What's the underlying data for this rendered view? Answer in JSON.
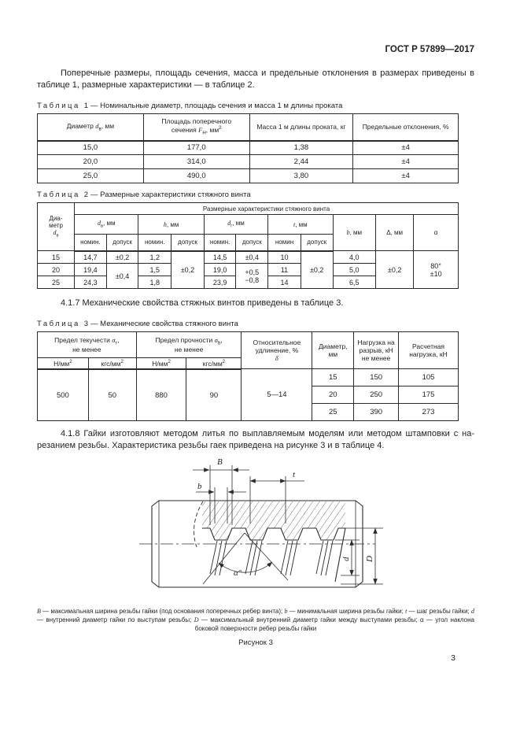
{
  "page": {
    "header": "ГОСТ Р 57899—2017",
    "number": "3"
  },
  "text": {
    "intro": "Поперечные размеры, площадь сечения, масса и предельные отклонения в размерах приведены в таблице 1, размерные характеристики — в таблице 2.",
    "p417": "4.1.7 Механические свойства стяжных винтов приведены в таблице 3.",
    "p418": "4.1.8 Гайки изготовляют методом литья по выплавляемым моделям или методом штамповки с на­резанием резьбы. Характеристика резьбы гаек приведена на рисунке 3 и в таблице 4."
  },
  "tables": {
    "t1": {
      "caption": {
        "word": "Таблица",
        "num": "1",
        "text": "— Номинальные диаметр, площадь сечения и масса 1 м длины проката"
      },
      "widths": [
        25.2,
        25.2,
        24.6,
        25.0
      ],
      "head": [
        [
          {
            "t": "Диаметр *d*~в~, мм"
          },
          {
            "t": "Площадь поперечного\nсечения *F*~Н~, мм^2^"
          },
          {
            "t": "Масса 1 м длины проката, кг"
          },
          {
            "t": "Предельные отклонения, %"
          }
        ]
      ],
      "body": [
        [
          "15,0",
          "177,0",
          "1,38",
          "±4"
        ],
        [
          "20,0",
          "314,0",
          "2,44",
          "±4"
        ],
        [
          "25,0",
          "490,0",
          "3,80",
          "±4"
        ]
      ]
    },
    "t2": {
      "caption": {
        "word": "Таблица",
        "num": "2",
        "text": "— Размерные характеристики стяжного винта"
      },
      "widths": [
        8.8,
        7.6,
        7.6,
        7.8,
        7.8,
        7.6,
        7.6,
        7.8,
        7.6,
        10.2,
        9.0,
        10.6
      ],
      "head": [
        [
          {
            "t": "Диа-\nметр\n*d*~в~",
            "rs": 3
          },
          {
            "t": "Размерные характеристики стяжного винта",
            "cs": 11
          }
        ],
        [
          {
            "t": "*d*~в~, мм",
            "cs": 2
          },
          {
            "t": "*h*, мм",
            "cs": 2
          },
          {
            "t": "*d*~г~, мм",
            "cs": 2
          },
          {
            "t": "*t*, мм",
            "cs": 2
          },
          {
            "t": "*b*, мм",
            "rs": 2
          },
          {
            "t": "Δ, мм",
            "rs": 2
          },
          {
            "t": "α",
            "rs": 2
          }
        ],
        [
          {
            "t": "номин."
          },
          {
            "t": "допуск"
          },
          {
            "t": "номин."
          },
          {
            "t": "допуск"
          },
          {
            "t": "номин."
          },
          {
            "t": "допуск"
          },
          {
            "t": "номин"
          },
          {
            "t": "допуск"
          }
        ]
      ],
      "body": [
        [
          "15",
          "14,7",
          "±0,2",
          "1,2",
          {
            "t": "±0,2",
            "rs": 3
          },
          "14,5",
          "±0,4",
          "10",
          {
            "t": "±0,2",
            "rs": 3
          },
          "4,0",
          {
            "t": "±0,2",
            "rs": 3
          },
          {
            "t": "80°\n±10",
            "rs": 3
          }
        ],
        [
          "20",
          "19,4",
          {
            "t": "±0,4",
            "rs": 2
          },
          "1,5",
          "19,0",
          {
            "t": "+0,5\n−0,8",
            "rs": 2
          },
          "11",
          "5,0"
        ],
        [
          "25",
          "24,3",
          "1,8",
          "23,9",
          "14",
          "6,5"
        ]
      ]
    },
    "t3": {
      "caption": {
        "word": "Таблица",
        "num": "3",
        "text": "— Механические свойства стяжного винта"
      },
      "widths": [
        12.1,
        11.4,
        11.9,
        13.1,
        16.8,
        9.9,
        10.6,
        14.2
      ],
      "head": [
        [
          {
            "t": "Предел текучести *σ*~т~,\nне менее",
            "cs": 2
          },
          {
            "t": "Предел прочности *σ*~b~,\nне менее",
            "cs": 2
          },
          {
            "t": "Относительное\nудлинение, %\n*δ*",
            "rs": 2
          },
          {
            "t": "Диаметр,\nмм",
            "rs": 2
          },
          {
            "t": "Нагрузка на\nразрыв, кН\nне менее",
            "rs": 2
          },
          {
            "t": "Расчетная\nнагрузка, кН",
            "rs": 2
          }
        ],
        [
          {
            "t": "Н/мм^2^"
          },
          {
            "t": "кгс/мм^2^"
          },
          {
            "t": "Н/мм^2^"
          },
          {
            "t": "кгс/мм^2^"
          }
        ]
      ],
      "body": [
        [
          {
            "t": "500",
            "rs": 3
          },
          {
            "t": "50",
            "rs": 3
          },
          {
            "t": "880",
            "rs": 3
          },
          {
            "t": "90",
            "rs": 3
          },
          {
            "t": "5—14",
            "rs": 3
          },
          "15",
          "150",
          "105"
        ],
        [
          "20",
          "250",
          "175"
        ],
        [
          "25",
          "390",
          "273"
        ]
      ]
    }
  },
  "figure": {
    "labels": {
      "B": "B",
      "b": "b",
      "t": "t",
      "alpha": "α°",
      "d": "d",
      "D": "D"
    },
    "caption": "*B* — максимальная ширина резьбы гайки (под основания поперечных ребер винта); *b* — минимальная ширина резьбы гайки; *t* — шаг резьбы гайки; *d* — внутренний диаметр гайки по выступам резьбы; *D* — максимальный внутренний диаметр гайки между выступами резьбы; α — угол наклона боковой поверхности ребер резьбы гайки",
    "label": "Рисунок 3"
  }
}
